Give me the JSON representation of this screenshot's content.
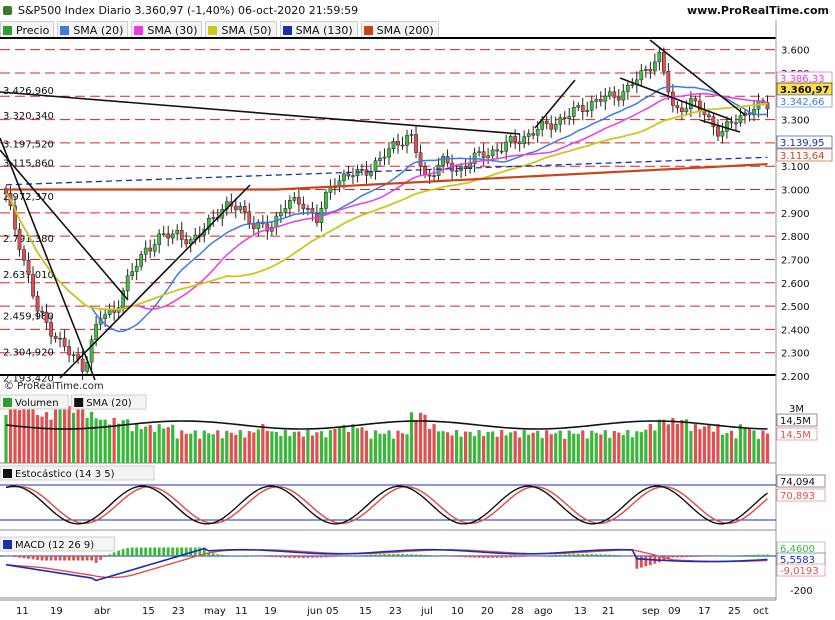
{
  "header": {
    "title": "S&P500 Index Diario 3.360,97 (-1,40%) 06-oct-2020 21:59:59",
    "site": "www.ProRealTime.com",
    "credit": "© ProRealTime.com"
  },
  "legend": [
    {
      "label": "Precio",
      "color": "#2e9e2e"
    },
    {
      "label": "SMA (20)",
      "color": "#3d7be0"
    },
    {
      "label": "SMA (30)",
      "color": "#e83ce8"
    },
    {
      "label": "SMA (50)",
      "color": "#c8c81e"
    },
    {
      "label": "SMA (130)",
      "color": "#1a2fb0"
    },
    {
      "label": "SMA (200)",
      "color": "#c8451c"
    }
  ],
  "price_axis": {
    "ticks": [
      "3.600",
      "3.500",
      "3.400",
      "3.300",
      "3.200",
      "3.100",
      "3.000",
      "2.900",
      "2.800",
      "2.700",
      "2.600",
      "2.500",
      "2.400",
      "2.300",
      "2.200"
    ]
  },
  "left_levels": [
    "3.426,960",
    "3.320,340",
    "3.197,520",
    "3.115,860",
    "2.972,370",
    "2.791,380",
    "2.637,010",
    "2.459,980",
    "2.304,920",
    "2.193,420"
  ],
  "price_tags": [
    {
      "text": "3.386,33",
      "color": "#e83ce8"
    },
    {
      "text": "3.360,97",
      "color": "#111111"
    },
    {
      "text": "3.342,66",
      "color": "#3d7be0"
    },
    {
      "text": "3.139,95",
      "color": "#1a2fb0"
    },
    {
      "text": "3.113,64",
      "color": "#c8451c"
    }
  ],
  "volume": {
    "labels": [
      {
        "label": "Volumen",
        "color": "#2e9e2e"
      },
      {
        "label": "SMA (20)",
        "color": "#111111"
      }
    ],
    "axis": "3M",
    "tags": [
      "14,5M",
      "14,5M"
    ]
  },
  "stochastic": {
    "label": "Estocástico (14 3 5)",
    "axis": "100",
    "tags": [
      "74,094",
      "70,893"
    ]
  },
  "macd": {
    "label": "MACD (12 26 9)",
    "axis_top": "6,4600",
    "axis_zero": "5,5583",
    "axis_low": "-200",
    "tag": "-9,0193"
  },
  "x_axis": [
    "11",
    "19",
    "abr",
    "15",
    "23",
    "may",
    "11",
    "19",
    "jun",
    "05",
    "15",
    "23",
    "jul",
    "10",
    "20",
    "28",
    "ago",
    "13",
    "21",
    "sep",
    "09",
    "17",
    "25",
    "oct"
  ],
  "chart_data": {
    "type": "candlestick",
    "title": "S&P500 Index Diario 3.360,97 (-1,40%) 06-oct-2020 21:59:59",
    "ylim": [
      2200,
      3650
    ],
    "last_close": 3360.97,
    "approx_closes": [
      2972,
      2740,
      2480,
      2390,
      2300,
      2237,
      2447,
      2485,
      2630,
      2750,
      2790,
      2820,
      2760,
      2870,
      2912,
      2940,
      2830,
      2845,
      2930,
      2955,
      2863,
      3036,
      3055,
      3080,
      3115,
      3200,
      3230,
      3045,
      3120,
      3080,
      3130,
      3155,
      3185,
      3215,
      3250,
      3280,
      3310,
      3350,
      3380,
      3400,
      3430,
      3500,
      3580,
      3330,
      3380,
      3320,
      3240,
      3300,
      3350,
      3360
    ],
    "approx_volume_M": [
      8,
      9,
      7,
      10,
      8,
      7,
      6,
      6,
      5,
      5,
      5,
      4,
      4,
      4,
      4,
      4,
      5,
      4,
      4,
      4,
      4,
      5,
      5,
      4,
      4,
      4,
      7,
      5,
      4,
      4,
      4,
      4,
      4,
      4,
      4,
      4,
      4,
      4,
      4,
      4,
      4,
      5,
      6,
      6,
      5,
      5,
      4,
      5,
      4,
      4
    ]
  }
}
